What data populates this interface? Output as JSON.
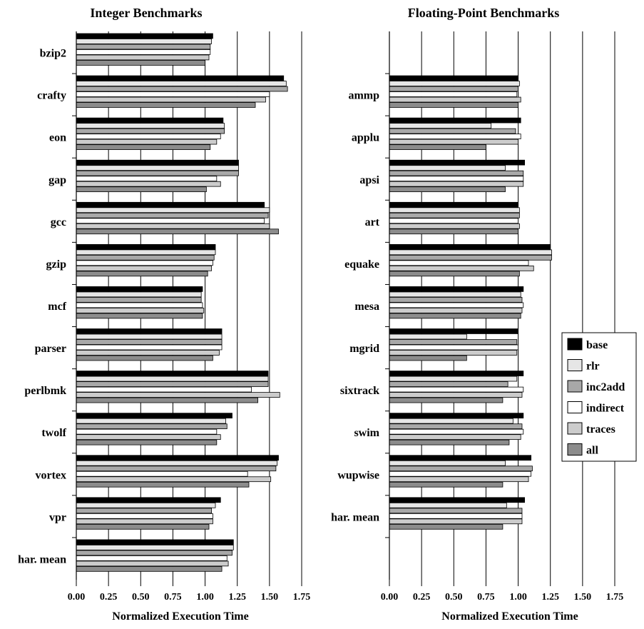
{
  "chart_data": [
    {
      "type": "bar",
      "orientation": "horizontal",
      "title": "Integer Benchmarks",
      "xlabel": "Normalized Execution Time",
      "ylabel": "",
      "xlim": [
        0,
        1.75
      ],
      "ticks": [
        "0.00",
        "0.25",
        "0.50",
        "0.75",
        "1.00",
        "1.25",
        "1.50",
        "1.75"
      ],
      "grid": "vertical",
      "categories": [
        "bzip2",
        "crafty",
        "eon",
        "gap",
        "gcc",
        "gzip",
        "mcf",
        "parser",
        "perlbmk",
        "twolf",
        "vortex",
        "vpr",
        "har. mean"
      ],
      "series": [
        {
          "name": "base",
          "values": [
            1.06,
            1.61,
            1.14,
            1.26,
            1.46,
            1.08,
            0.98,
            1.13,
            1.49,
            1.21,
            1.57,
            1.12,
            1.22
          ]
        },
        {
          "name": "rlr",
          "values": [
            1.05,
            1.63,
            1.15,
            1.26,
            1.5,
            1.08,
            0.97,
            1.13,
            1.49,
            1.16,
            1.56,
            1.08,
            1.22
          ]
        },
        {
          "name": "inc2add",
          "values": [
            1.04,
            1.64,
            1.15,
            1.26,
            1.49,
            1.07,
            0.97,
            1.13,
            1.49,
            1.17,
            1.55,
            1.05,
            1.21
          ]
        },
        {
          "name": "indirect",
          "values": [
            1.04,
            1.5,
            1.12,
            1.09,
            1.46,
            1.06,
            0.98,
            1.13,
            1.36,
            1.09,
            1.33,
            1.06,
            1.17
          ]
        },
        {
          "name": "traces",
          "values": [
            1.03,
            1.47,
            1.09,
            1.12,
            1.5,
            1.05,
            0.99,
            1.11,
            1.58,
            1.12,
            1.51,
            1.06,
            1.18
          ]
        },
        {
          "name": "all",
          "values": [
            1.0,
            1.39,
            1.04,
            1.01,
            1.57,
            1.02,
            0.98,
            1.06,
            1.41,
            1.09,
            1.34,
            1.03,
            1.13
          ]
        }
      ]
    },
    {
      "type": "bar",
      "orientation": "horizontal",
      "title": "Floating-Point Benchmarks",
      "xlabel": "Normalized Execution Time",
      "ylabel": "",
      "xlim": [
        0,
        1.75
      ],
      "ticks": [
        "0.00",
        "0.25",
        "0.50",
        "0.75",
        "1.00",
        "1.25",
        "1.50",
        "1.75"
      ],
      "grid": "vertical",
      "categories": [
        "",
        "ammp",
        "applu",
        "apsi",
        "art",
        "equake",
        "mesa",
        "mgrid",
        "sixtrack",
        "swim",
        "wupwise",
        "har. mean",
        ""
      ],
      "series": [
        {
          "name": "base",
          "values": [
            null,
            1.0,
            1.02,
            1.05,
            1.0,
            1.25,
            1.04,
            1.0,
            1.04,
            1.04,
            1.1,
            1.05,
            null
          ]
        },
        {
          "name": "rlr",
          "values": [
            null,
            1.01,
            0.79,
            0.9,
            1.01,
            1.26,
            1.02,
            0.6,
            0.99,
            0.96,
            0.9,
            0.91,
            null
          ]
        },
        {
          "name": "inc2add",
          "values": [
            null,
            1.0,
            0.98,
            1.04,
            1.01,
            1.26,
            1.03,
            0.99,
            0.92,
            1.03,
            1.11,
            1.03,
            null
          ]
        },
        {
          "name": "indirect",
          "values": [
            null,
            0.99,
            1.02,
            1.04,
            1.0,
            1.08,
            1.04,
            1.0,
            1.04,
            1.04,
            1.1,
            1.03,
            null
          ]
        },
        {
          "name": "traces",
          "values": [
            null,
            1.02,
            1.0,
            1.04,
            1.01,
            1.12,
            1.03,
            0.99,
            1.03,
            1.02,
            1.08,
            1.03,
            null
          ]
        },
        {
          "name": "all",
          "values": [
            null,
            1.0,
            0.75,
            0.9,
            1.0,
            1.01,
            1.02,
            0.6,
            0.88,
            0.93,
            0.88,
            0.88,
            null
          ]
        }
      ]
    }
  ],
  "legend": {
    "placement": "right",
    "items": [
      {
        "label": "base",
        "color": "#000000"
      },
      {
        "label": "rlr",
        "color": "#e6e6e6"
      },
      {
        "label": "inc2add",
        "color": "#a8a8a8"
      },
      {
        "label": "indirect",
        "color": "#ffffff"
      },
      {
        "label": "traces",
        "color": "#cccccc"
      },
      {
        "label": "all",
        "color": "#8c8c8c"
      }
    ]
  }
}
